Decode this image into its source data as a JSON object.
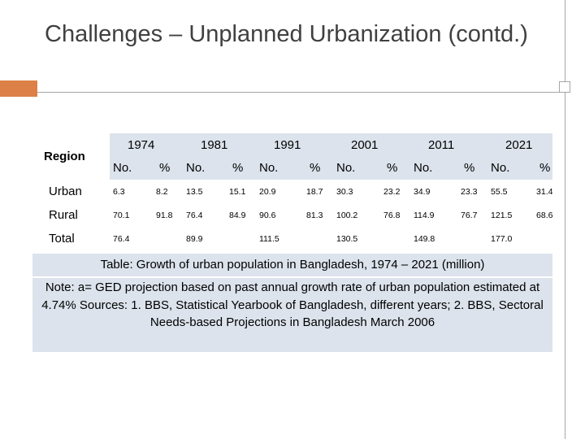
{
  "slide": {
    "title": "Challenges – Unplanned Urbanization (contd.)"
  },
  "table": {
    "region_header": "Region",
    "years": [
      "1974",
      "1981",
      "1991",
      "2001",
      "2011",
      "2021"
    ],
    "sub_no": "No.",
    "sub_pct": "%",
    "rows": [
      {
        "label": "Urban",
        "cells": [
          "6.3",
          "8.2",
          "13.5",
          "15.1",
          "20.9",
          "18.7",
          "30.3",
          "23.2",
          "34.9",
          "23.3",
          "55.5",
          "31.4"
        ]
      },
      {
        "label": "Rural",
        "cells": [
          "70.1",
          "91.8",
          "76.4",
          "84.9",
          "90.6",
          "81.3",
          "100.2",
          "76.8",
          "114.9",
          "76.7",
          "121.5",
          "68.6"
        ]
      },
      {
        "label": "Total",
        "cells": [
          "76.4",
          "",
          "89.9",
          "",
          "111.5",
          "",
          "130.5",
          "",
          "149.8",
          "",
          "177.0",
          ""
        ]
      }
    ]
  },
  "caption": "Table: Growth of urban population in Bangladesh, 1974 – 2021 (million)",
  "note": "Note: a= GED projection based on past annual growth rate of urban population estimated at 4.74% Sources: 1. BBS, Statistical Yearbook of Bangladesh, different years; 2. BBS, Sectoral Needs-based Projections in Bangladesh March 2006",
  "colors": {
    "accent": "#dd8047",
    "table_band": "#dce3ec",
    "title_text": "#404040"
  }
}
